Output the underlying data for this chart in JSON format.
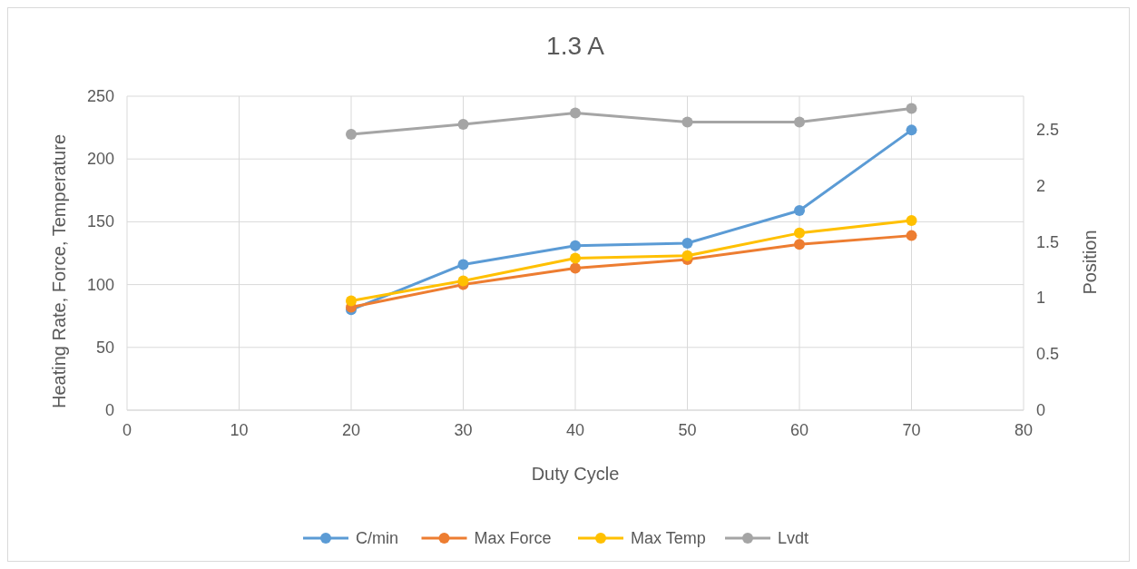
{
  "chart_data": {
    "type": "line",
    "title": "1.3 A",
    "xlabel": "Duty Cycle",
    "ylabel": "Heating Rate, Force, Temperature",
    "y2label": "Position",
    "x": [
      20,
      30,
      40,
      50,
      60,
      70
    ],
    "series": [
      {
        "name": "C/min",
        "color": "#5b9bd5",
        "values": [
          80,
          116,
          131,
          133,
          159,
          223
        ]
      },
      {
        "name": "Max Force",
        "color": "#ed7d31",
        "values": [
          82,
          100,
          113,
          120,
          132,
          139
        ]
      },
      {
        "name": "Max Temp",
        "color": "#ffc000",
        "values": [
          87,
          103,
          121,
          123,
          141,
          151
        ]
      },
      {
        "name": "Lvdt",
        "color": "#a5a5a5",
        "axis": "y2",
        "values": [
          2.46,
          2.55,
          2.65,
          2.57,
          2.57,
          2.69
        ]
      }
    ],
    "xlim": [
      0,
      80
    ],
    "xticks": [
      0,
      10,
      20,
      30,
      40,
      50,
      60,
      70,
      80
    ],
    "ylim": [
      0,
      250
    ],
    "yticks": [
      0,
      50,
      100,
      150,
      200,
      250
    ],
    "y2lim": [
      0,
      2.8
    ],
    "y2ticks": [
      0,
      0.5,
      1,
      1.5,
      2,
      2.5
    ],
    "grid": true,
    "legend": "bottom",
    "marker": "circle",
    "line_style": "solid"
  }
}
